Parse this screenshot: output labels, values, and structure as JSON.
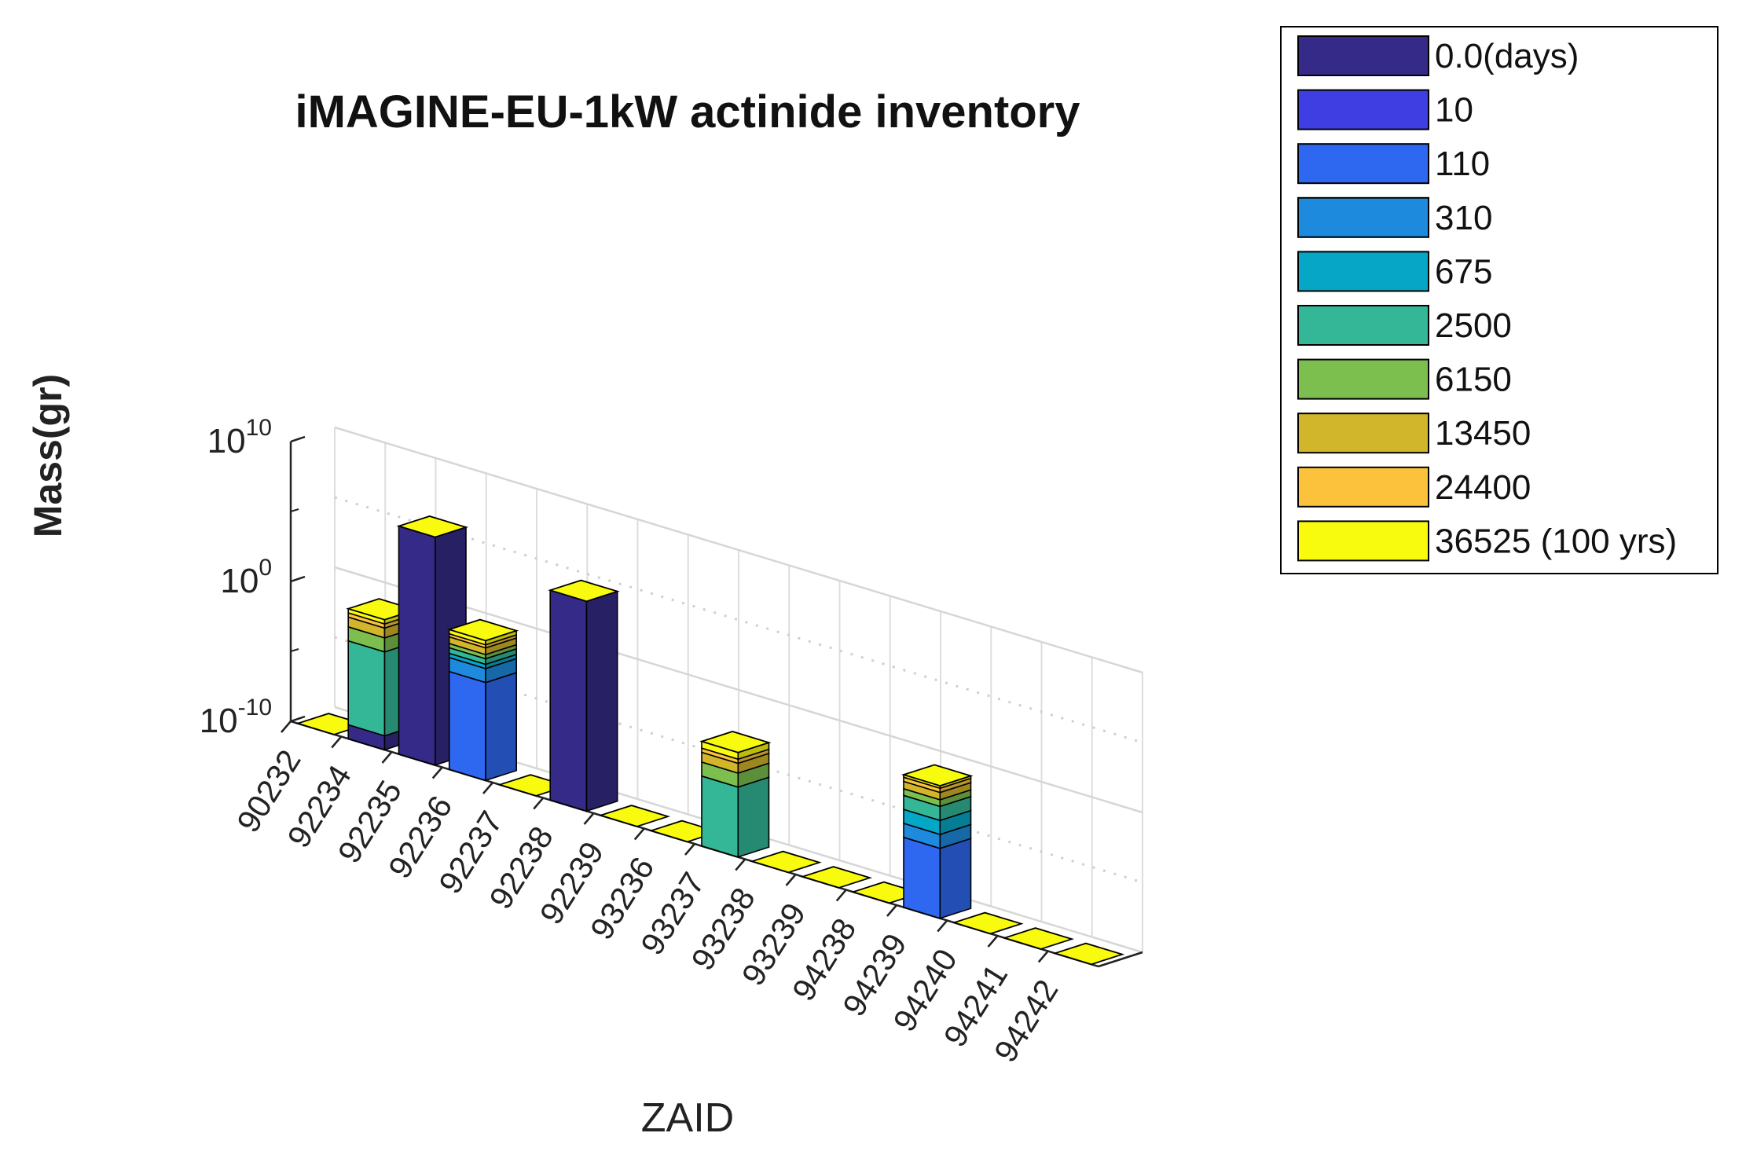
{
  "chart_data": {
    "type": "bar",
    "title": "iMAGINE-EU-1kW actinide inventory",
    "xlabel": "ZAID",
    "ylabel": "Mass(gr)",
    "yscale": "log",
    "ylim": [
      1e-10,
      10000000000.0
    ],
    "yticks": [
      {
        "base": "10",
        "exp": "-10",
        "value": 1e-10
      },
      {
        "base": "10",
        "exp": "0",
        "value": 1
      },
      {
        "base": "10",
        "exp": "10",
        "value": 10000000000.0
      }
    ],
    "grid": true,
    "legend_position": "top-right",
    "categories": [
      "90232",
      "92234",
      "92235",
      "92236",
      "92237",
      "92238",
      "92239",
      "93236",
      "93237",
      "93238",
      "93239",
      "94238",
      "94239",
      "94240",
      "94241",
      "94242"
    ],
    "series": [
      {
        "name": "0.0(days)",
        "color": "#352a87",
        "values": [
          1e-10,
          1e-09,
          2000000.0,
          1e-10,
          1e-10,
          100000.0,
          1e-10,
          1e-10,
          1e-10,
          1e-10,
          1e-10,
          1e-10,
          1e-10,
          1e-10,
          1e-10,
          1e-10
        ]
      },
      {
        "name": "10",
        "color": "#3f3ee2",
        "values": [
          1e-10,
          1e-09,
          2000000.0,
          1e-10,
          1e-10,
          100000.0,
          1e-10,
          1e-10,
          1e-10,
          1e-10,
          1e-10,
          1e-10,
          1e-10,
          1e-10,
          1e-10,
          1e-10
        ]
      },
      {
        "name": "110",
        "color": "#2e68f0",
        "values": [
          1e-10,
          1e-09,
          2000000.0,
          0.001,
          1e-10,
          100000.0,
          1e-10,
          1e-10,
          1e-10,
          1e-10,
          1e-10,
          1e-10,
          1e-05,
          1e-10,
          1e-10,
          1e-10
        ]
      },
      {
        "name": "310",
        "color": "#1d8ade",
        "values": [
          1e-10,
          1e-09,
          2000000.0,
          0.01,
          1e-10,
          100000.0,
          1e-10,
          1e-10,
          1e-10,
          1e-10,
          1e-10,
          1e-10,
          0.0001,
          1e-10,
          1e-10,
          1e-10
        ]
      },
      {
        "name": "675",
        "color": "#06a6c6",
        "values": [
          1e-10,
          1e-09,
          2000000.0,
          0.02,
          1e-10,
          100000.0,
          1e-10,
          1e-10,
          1e-10,
          1e-10,
          1e-10,
          1e-10,
          0.001,
          1e-10,
          1e-10,
          1e-10
        ]
      },
      {
        "name": "2500",
        "color": "#33b796",
        "values": [
          1e-10,
          0.001,
          2000000.0,
          0.05,
          1e-10,
          100000.0,
          1e-10,
          1e-10,
          1e-05,
          1e-10,
          1e-10,
          1e-10,
          0.01,
          1e-10,
          1e-10,
          1e-10
        ]
      },
      {
        "name": "6150",
        "color": "#7cbf4e",
        "values": [
          1e-10,
          0.01,
          2000000.0,
          0.1,
          1e-10,
          100000.0,
          1e-10,
          1e-10,
          0.0001,
          1e-10,
          1e-10,
          1e-10,
          0.03,
          1e-10,
          1e-10,
          1e-10
        ]
      },
      {
        "name": "13450",
        "color": "#d1b52b",
        "values": [
          1e-10,
          0.05,
          2000000.0,
          0.3,
          1e-10,
          100000.0,
          1e-10,
          1e-10,
          0.0005,
          1e-10,
          1e-10,
          1e-10,
          0.1,
          1e-10,
          1e-10,
          1e-10
        ]
      },
      {
        "name": "24400",
        "color": "#fcc23b",
        "values": [
          1e-10,
          0.1,
          2000000.0,
          0.5,
          1e-10,
          100000.0,
          1e-10,
          1e-10,
          0.001,
          1e-10,
          1e-10,
          1e-10,
          0.2,
          1e-10,
          1e-10,
          1e-10
        ]
      },
      {
        "name": "36525 (100 yrs)",
        "color": "#f9fb0e",
        "values": [
          1e-10,
          0.2,
          2000000.0,
          1,
          1e-10,
          100000.0,
          1e-10,
          1e-10,
          0.003,
          1e-10,
          1e-10,
          1e-10,
          0.3,
          1e-10,
          1e-10,
          1e-10
        ]
      }
    ]
  }
}
